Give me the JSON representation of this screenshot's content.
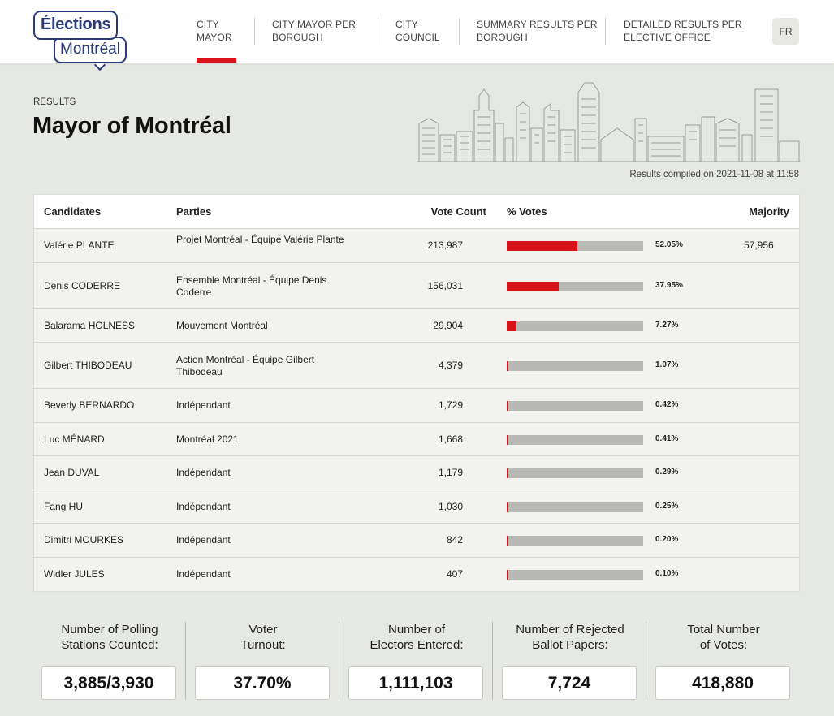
{
  "logo": {
    "line1": "Élections",
    "line2": "Montréal"
  },
  "nav": {
    "items": [
      {
        "label": "City Mayor",
        "active": true
      },
      {
        "label": "City Mayor per Borough",
        "active": false
      },
      {
        "label": "City Council",
        "active": false
      },
      {
        "label": "Summary results per Borough",
        "active": false
      },
      {
        "label": "Detailed results per elective office",
        "active": false
      }
    ],
    "lang": "FR"
  },
  "page": {
    "section_label": "RESULTS",
    "title": "Mayor of Montréal",
    "compiled": "Results compiled on 2021-11-08 at 11:58"
  },
  "table": {
    "headers": {
      "candidates": "Candidates",
      "parties": "Parties",
      "votes": "Vote Count",
      "percent": "% Votes",
      "majority": "Majority"
    },
    "rows": [
      {
        "name": "Valérie PLANTE",
        "party": "Projet Montréal - Équipe Valérie Plante",
        "votes": "213,987",
        "pct": "52.05%",
        "pct_value": 52.05,
        "majority": "57,956"
      },
      {
        "name": "Denis CODERRE",
        "party": "Ensemble Montréal - Équipe Denis Coderre",
        "votes": "156,031",
        "pct": "37.95%",
        "pct_value": 37.95,
        "majority": ""
      },
      {
        "name": "Balarama HOLNESS",
        "party": "Mouvement Montréal",
        "votes": "29,904",
        "pct": "7.27%",
        "pct_value": 7.27,
        "majority": ""
      },
      {
        "name": "Gilbert THIBODEAU",
        "party": "Action Montréal - Équipe Gilbert Thibodeau",
        "votes": "4,379",
        "pct": "1.07%",
        "pct_value": 1.07,
        "majority": ""
      },
      {
        "name": "Beverly BERNARDO",
        "party": "Indépendant",
        "votes": "1,729",
        "pct": "0.42%",
        "pct_value": 0.42,
        "majority": ""
      },
      {
        "name": "Luc MÉNARD",
        "party": "Montréal 2021",
        "votes": "1,668",
        "pct": "0.41%",
        "pct_value": 0.41,
        "majority": ""
      },
      {
        "name": "Jean DUVAL",
        "party": "Indépendant",
        "votes": "1,179",
        "pct": "0.29%",
        "pct_value": 0.29,
        "majority": ""
      },
      {
        "name": "Fang HU",
        "party": "Indépendant",
        "votes": "1,030",
        "pct": "0.25%",
        "pct_value": 0.25,
        "majority": ""
      },
      {
        "name": "Dimitri MOURKES",
        "party": "Indépendant",
        "votes": "842",
        "pct": "0.20%",
        "pct_value": 0.2,
        "majority": ""
      },
      {
        "name": "Widler JULES",
        "party": "Indépendant",
        "votes": "407",
        "pct": "0.10%",
        "pct_value": 0.1,
        "majority": ""
      }
    ]
  },
  "stats": [
    {
      "label_1": "Number of Polling",
      "label_2": "Stations Counted:",
      "value": "3,885/3,930"
    },
    {
      "label_1": "Voter",
      "label_2": "Turnout:",
      "value": "37.70%"
    },
    {
      "label_1": "Number of",
      "label_2": "Electors Entered:",
      "value": "1,111,103"
    },
    {
      "label_1": "Number of Rejected",
      "label_2": "Ballot Papers:",
      "value": "7,724"
    },
    {
      "label_1": "Total Number",
      "label_2": "of Votes:",
      "value": "418,880"
    }
  ],
  "colors": {
    "accent": "#d8141a",
    "brand": "#2a3a7a",
    "bar_bg": "#b8b9b4",
    "page_bg": "#e6e8e3"
  }
}
